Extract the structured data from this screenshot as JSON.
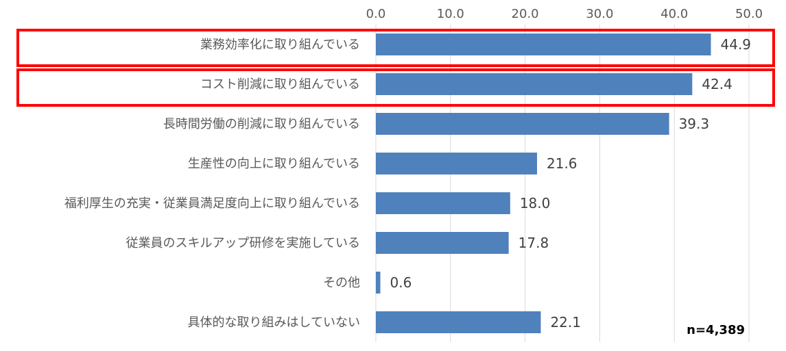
{
  "chart_data": {
    "type": "bar",
    "orientation": "horizontal",
    "categories": [
      "業務効率化に取り組んでいる",
      "コスト削減に取り組んでいる",
      "長時間労働の削減に取り組んでいる",
      "生産性の向上に取り組んでいる",
      "福利厚生の充実・従業員満足度向上に取り組んでいる",
      "従業員のスキルアップ研修を実施している",
      "その他",
      "具体的な取り組みはしていない"
    ],
    "values": [
      44.9,
      42.4,
      39.3,
      21.6,
      18.0,
      17.8,
      0.6,
      22.1
    ],
    "value_labels": [
      "44.9",
      "42.4",
      "39.3",
      "21.6",
      "18.0",
      "17.8",
      "0.6",
      "22.1"
    ],
    "x_ticks": [
      0,
      10,
      20,
      30,
      40,
      50
    ],
    "x_tick_labels": [
      "0.0",
      "10.0",
      "20.0",
      "30.0",
      "40.0",
      "50.0"
    ],
    "xlim": [
      0,
      50
    ],
    "axis_position": "top",
    "grid": true,
    "highlighted_categories": [
      0,
      1
    ],
    "note": "n=4,389",
    "colors": {
      "bar": "#4f81bd",
      "highlight_box": "#ff0000",
      "grid": "#d9d9d9",
      "text": "#595959",
      "note": "#000000"
    }
  }
}
